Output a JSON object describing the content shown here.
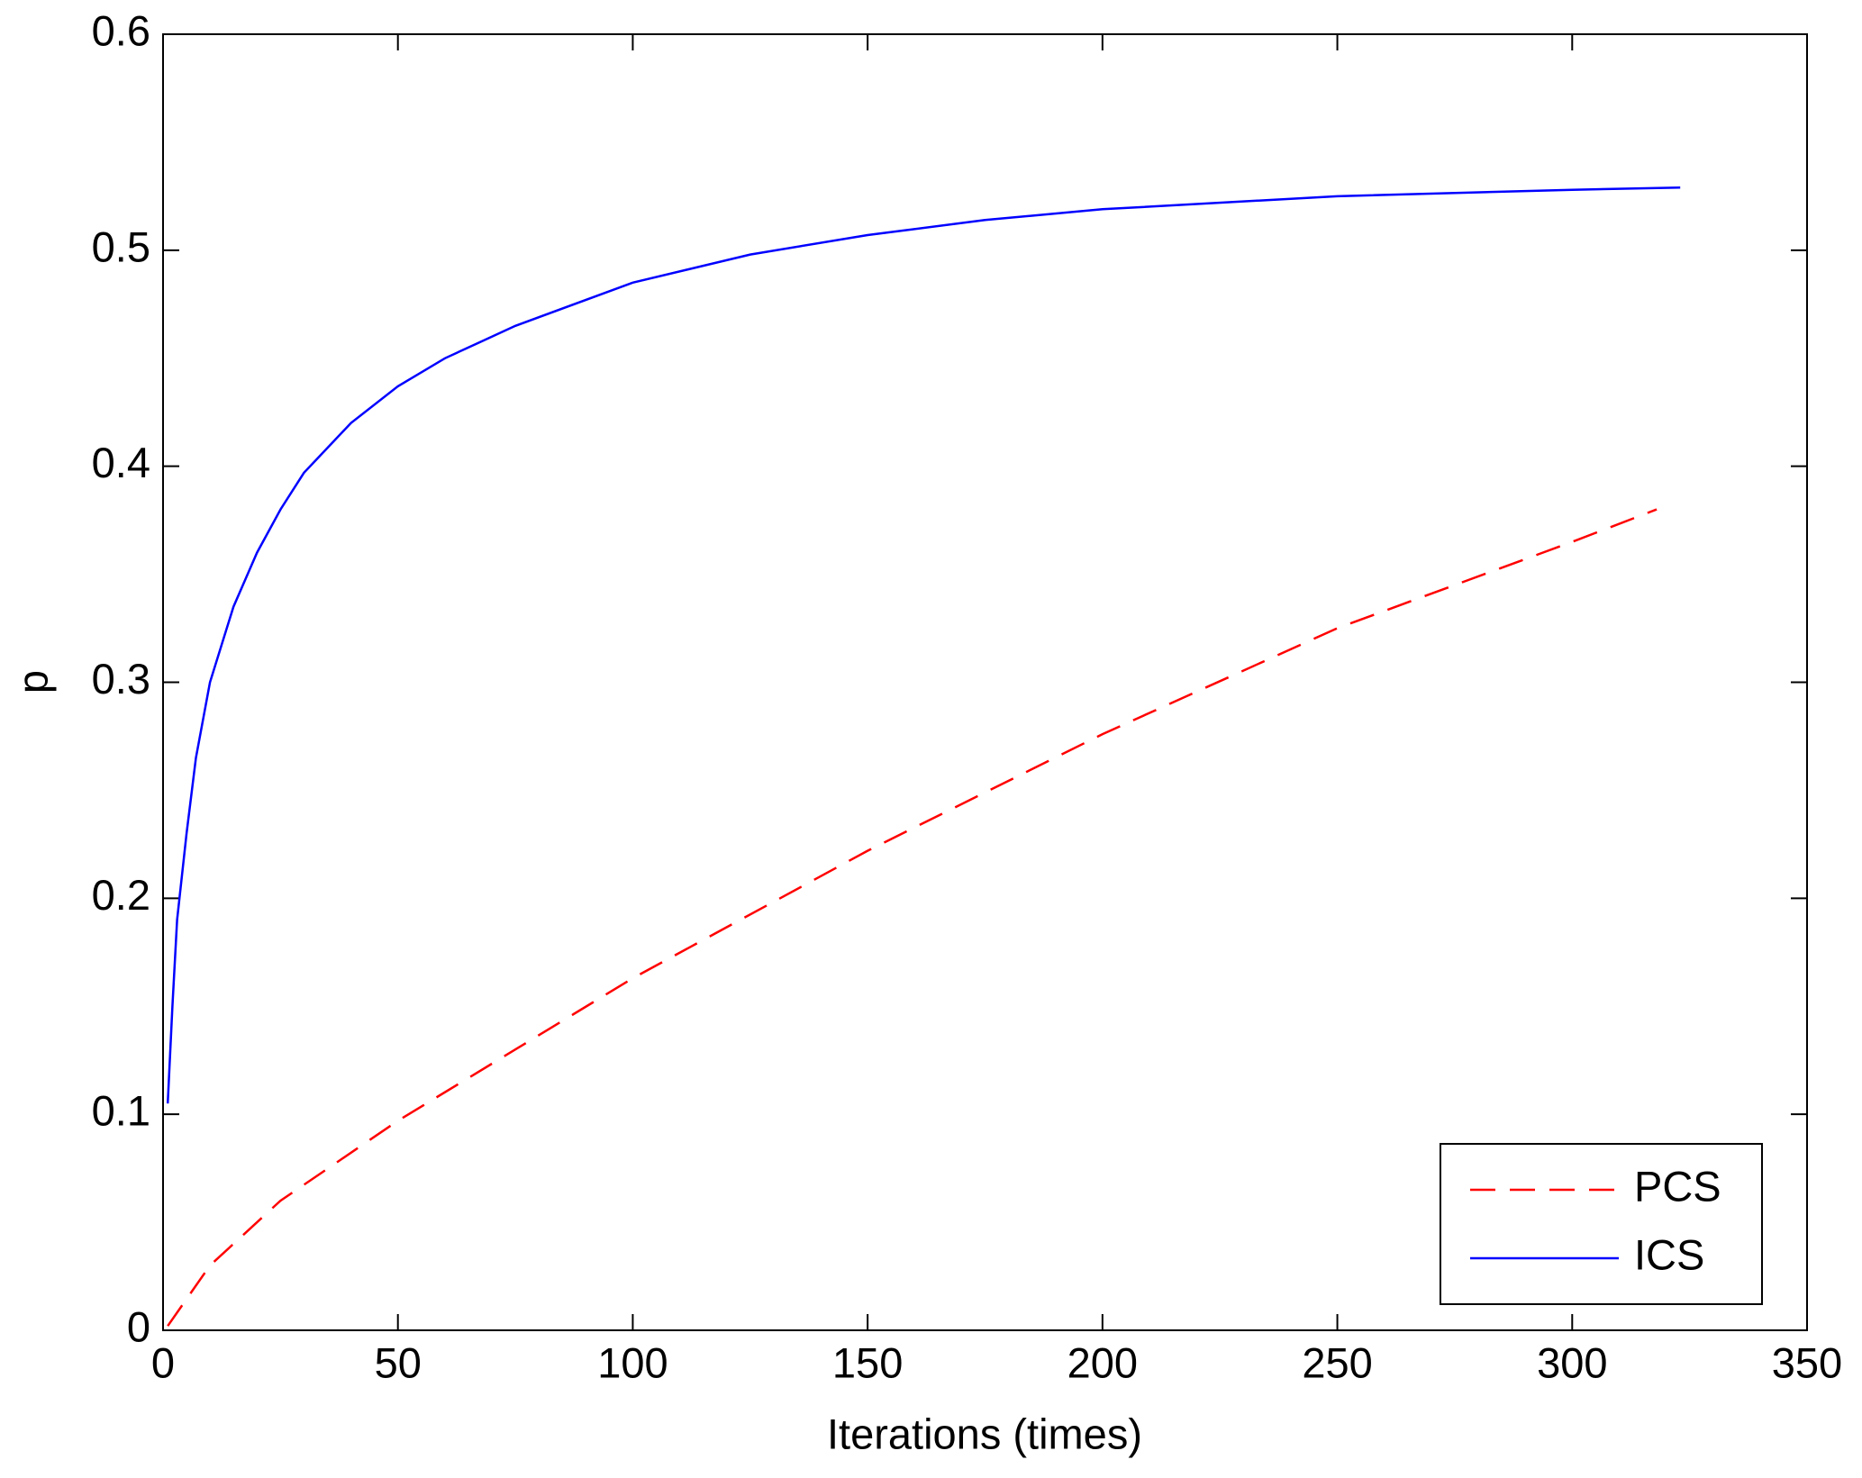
{
  "chart_data": {
    "type": "line",
    "x_label": "Iterations (times)",
    "y_label": "p",
    "xlim": [
      0,
      350
    ],
    "xticks": [
      0,
      50,
      100,
      150,
      200,
      250,
      300,
      350
    ],
    "ylim": [
      0,
      0.6
    ],
    "yticks": [
      0,
      0.1,
      0.2,
      0.3,
      0.4,
      0.5,
      0.6
    ],
    "legend": "lower right",
    "series": [
      {
        "name": "PCS",
        "color": "#ff0000",
        "dash": true,
        "x": [
          1,
          10,
          25,
          50,
          75,
          100,
          150,
          200,
          250,
          300,
          318
        ],
        "values": [
          0.002,
          0.03,
          0.06,
          0.097,
          0.13,
          0.163,
          0.222,
          0.276,
          0.325,
          0.365,
          0.38
        ]
      },
      {
        "name": "ICS",
        "color": "#0000ff",
        "dash": false,
        "x": [
          1,
          2,
          3,
          5,
          7,
          10,
          15,
          20,
          25,
          30,
          40,
          50,
          60,
          75,
          100,
          125,
          150,
          175,
          200,
          250,
          300,
          323
        ],
        "values": [
          0.105,
          0.15,
          0.19,
          0.23,
          0.265,
          0.3,
          0.335,
          0.36,
          0.38,
          0.397,
          0.42,
          0.437,
          0.45,
          0.465,
          0.485,
          0.498,
          0.507,
          0.514,
          0.519,
          0.525,
          0.528,
          0.529
        ]
      }
    ]
  }
}
